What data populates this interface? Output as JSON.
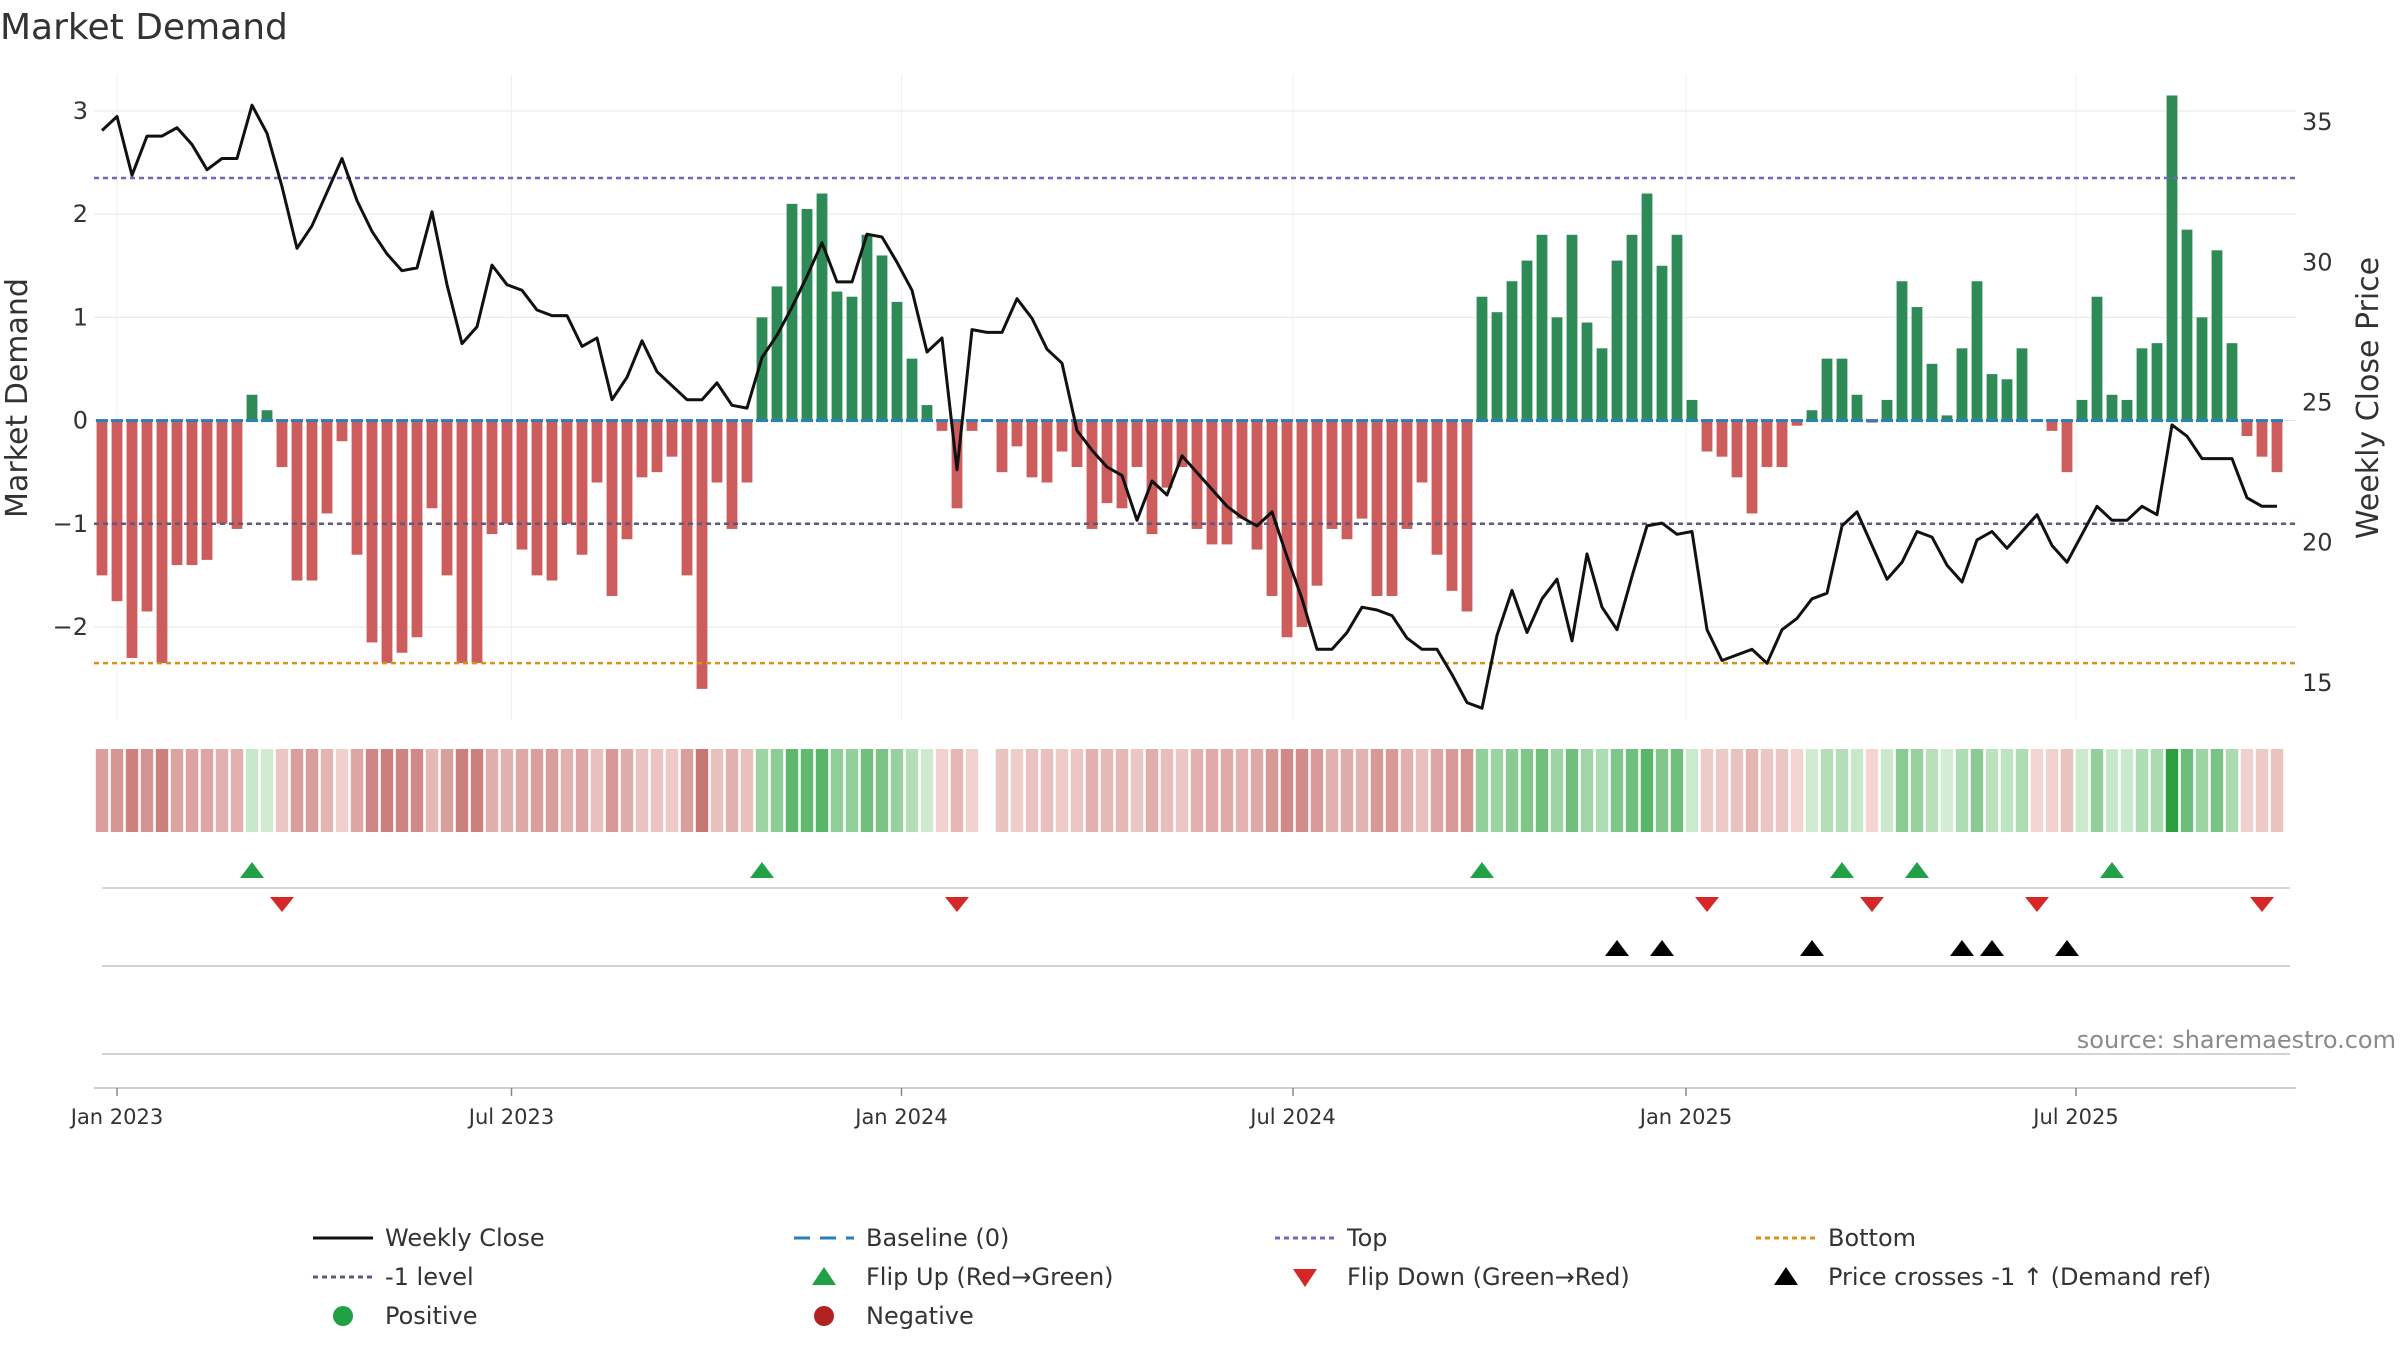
{
  "chart_data": {
    "type": "bar",
    "title": "Market Demand",
    "ylabel": "Market Demand",
    "y2label": "Weekly Close Price",
    "ylim": [
      -2.95,
      3.3
    ],
    "y2lim": [
      13.5,
      36.5
    ],
    "yticks": [
      3,
      2,
      1,
      0,
      -1,
      -2
    ],
    "ytick_labels": [
      "3",
      "2",
      "1",
      "0",
      "−1",
      "−2"
    ],
    "y2ticks": [
      35,
      30,
      25,
      20,
      15
    ],
    "y2tick_labels": [
      "35",
      "30",
      "25",
      "20",
      "15"
    ],
    "x_start": "2022-12-27",
    "week_count": 147,
    "week_index_of_first": 0,
    "xtick_labels": [
      "Jan 2023",
      "Jul 2023",
      "Jan 2024",
      "Jul 2024",
      "Jan 2025",
      "Jul 2025"
    ],
    "xtick_weeks": [
      1,
      27.3,
      53.3,
      79.4,
      105.6,
      131.6
    ],
    "levels": {
      "top": 2.35,
      "minus_one": -1,
      "bottom": -2.35,
      "baseline": 0
    },
    "demand": [
      -1.5,
      -1.75,
      -2.3,
      -1.85,
      -2.35,
      -1.4,
      -1.4,
      -1.35,
      -1.0,
      -1.05,
      0.25,
      0.1,
      -0.45,
      -1.55,
      -1.55,
      -0.9,
      -0.2,
      -1.3,
      -2.15,
      -2.35,
      -2.25,
      -2.1,
      -0.85,
      -1.5,
      -2.35,
      -2.35,
      -1.1,
      -1.0,
      -1.25,
      -1.5,
      -1.55,
      -1.0,
      -1.3,
      -0.6,
      -1.7,
      -1.15,
      -0.55,
      -0.5,
      -0.35,
      -1.5,
      -2.6,
      -0.6,
      -1.05,
      -0.6,
      1.0,
      1.3,
      2.1,
      2.05,
      2.2,
      1.25,
      1.2,
      1.8,
      1.6,
      1.15,
      0.6,
      0.15,
      -0.1,
      -0.85,
      -0.1,
      0,
      -0.5,
      -0.25,
      -0.55,
      -0.6,
      -0.3,
      -0.45,
      -1.05,
      -0.8,
      -0.85,
      -0.45,
      -1.1,
      -0.65,
      -0.45,
      -1.05,
      -1.2,
      -1.2,
      -0.95,
      -1.25,
      -1.7,
      -2.1,
      -2.0,
      -1.6,
      -1.05,
      -1.15,
      -0.95,
      -1.7,
      -1.7,
      -1.05,
      -0.6,
      -1.3,
      -1.65,
      -1.85,
      1.2,
      1.05,
      1.35,
      1.55,
      1.8,
      1.0,
      1.8,
      0.95,
      0.7,
      1.55,
      1.8,
      2.2,
      1.5,
      1.8,
      0.2,
      -0.3,
      -0.35,
      -0.55,
      -0.9,
      -0.45,
      -0.45,
      -0.05,
      0.1,
      0.6,
      0.6,
      0.25,
      -0.02,
      0.2,
      1.35,
      1.1,
      0.55,
      0.05,
      0.7,
      1.35,
      0.45,
      0.4,
      0.7,
      0,
      -0.1,
      -0.5,
      0.2,
      1.2,
      0.25,
      0.2,
      0.7,
      0.75,
      3.15,
      1.85,
      1.0,
      1.65,
      0.75,
      -0.15,
      -0.35,
      -0.5
    ],
    "price": [
      34.7,
      35.2,
      33.1,
      34.5,
      34.5,
      34.8,
      34.2,
      33.3,
      33.7,
      33.7,
      35.6,
      34.6,
      32.7,
      30.5,
      31.3,
      32.5,
      33.7,
      32.2,
      31.1,
      30.3,
      29.7,
      29.8,
      31.8,
      29.2,
      27.1,
      27.7,
      29.9,
      29.2,
      29.0,
      28.3,
      28.1,
      28.1,
      27.0,
      27.3,
      25.1,
      25.9,
      27.2,
      26.1,
      25.6,
      25.1,
      25.1,
      25.7,
      24.9,
      24.8,
      26.6,
      27.4,
      28.4,
      29.5,
      30.7,
      29.3,
      29.3,
      31.0,
      30.9,
      30.0,
      29.0,
      26.8,
      27.3,
      22.6,
      27.6,
      27.5,
      27.5,
      28.7,
      28.0,
      26.9,
      26.4,
      24.0,
      23.3,
      22.7,
      22.4,
      20.8,
      22.2,
      21.7,
      23.1,
      22.5,
      21.9,
      21.3,
      20.9,
      20.6,
      21.1,
      19.5,
      18.0,
      16.2,
      16.2,
      16.8,
      17.7,
      17.6,
      17.4,
      16.6,
      16.2,
      16.2,
      15.3,
      14.3,
      14.1,
      16.7,
      18.3,
      16.8,
      18.0,
      18.7,
      16.5,
      19.6,
      17.7,
      16.9,
      18.8,
      20.6,
      20.7,
      20.3,
      20.4,
      16.9,
      15.8,
      16.0,
      16.2,
      15.7,
      16.9,
      17.3,
      18.0,
      18.2,
      20.6,
      21.1,
      19.9,
      18.7,
      19.3,
      20.4,
      20.2,
      19.2,
      18.6,
      20.1,
      20.4,
      19.8,
      20.4,
      21.0,
      19.9,
      19.3,
      20.3,
      21.3,
      20.8,
      20.8,
      21.3,
      21.0,
      24.2,
      23.8,
      23.0,
      23.0,
      23.0,
      21.6,
      21.3,
      21.3
    ],
    "flip_up_weeks": [
      10,
      44,
      92,
      116,
      121,
      134
    ],
    "flip_down_weeks": [
      12,
      57,
      107,
      118,
      129,
      144
    ],
    "price_cross_weeks": [
      101,
      104,
      114,
      124,
      126,
      131
    ],
    "heat_gap_weeks": [
      59
    ],
    "colors": {
      "positive_bar": "#2e8b57",
      "negative_bar": "#cd5c5c",
      "price_line": "#111111",
      "top_line": "#6b6bb8",
      "minus_one_line": "#5a5a7a",
      "bottom_line": "#d8901a",
      "baseline": "#2a7fb8",
      "flip_up": "#22a045",
      "flip_down": "#d62728",
      "cross": "#000000",
      "positive_dot": "#22a045",
      "negative_dot": "#b22222",
      "grid": "#e6e6e6"
    },
    "legend": [
      {
        "key": "weekly_close",
        "label": "Weekly Close",
        "symbol": "line"
      },
      {
        "key": "baseline",
        "label": "Baseline (0)",
        "symbol": "dash"
      },
      {
        "key": "top",
        "label": "Top",
        "symbol": "dot"
      },
      {
        "key": "bottom",
        "label": "Bottom",
        "symbol": "dot"
      },
      {
        "key": "minus_one",
        "label": "-1 level",
        "symbol": "dot"
      },
      {
        "key": "flip_up",
        "label": "Flip Up (Red→Green)",
        "symbol": "tri-up"
      },
      {
        "key": "flip_down",
        "label": "Flip Down (Green→Red)",
        "symbol": "tri-down"
      },
      {
        "key": "cross",
        "label": "Price crosses -1 ↑ (Demand ref)",
        "symbol": "tri-up"
      },
      {
        "key": "positive",
        "label": "Positive",
        "symbol": "circle"
      },
      {
        "key": "negative",
        "label": "Negative",
        "symbol": "circle"
      }
    ],
    "source": "source: sharemaestro.com"
  }
}
